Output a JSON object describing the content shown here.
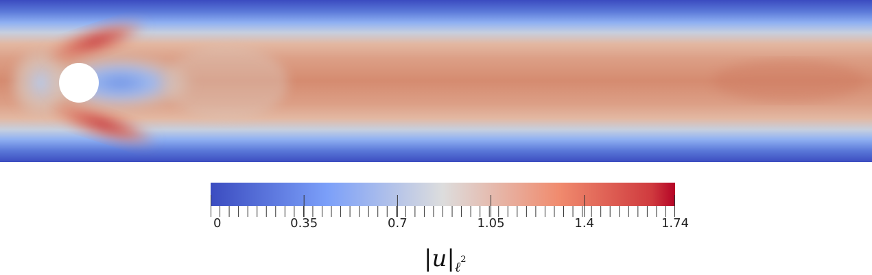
{
  "colorbar": {
    "min": 0,
    "max": 1.74,
    "tick_labels": [
      "0",
      "0.35",
      "0.7",
      "1.05",
      "1.4",
      "1.74"
    ],
    "tick_values": [
      0,
      0.35,
      0.7,
      1.05,
      1.4,
      1.74
    ],
    "colormap": "cool-to-warm",
    "color_low": "#3b4cc0",
    "color_mid": "#dddddd",
    "color_high": "#b40426"
  },
  "legend": {
    "bar_left": "|",
    "variable": "u",
    "bar_right": "|",
    "subscript": "ℓ",
    "superscript": "2"
  },
  "field": {
    "obstacle": "circle",
    "obstacle_color": "#ffffff",
    "wall_color": "#3b4cc0",
    "core_color": "#d4876a"
  }
}
